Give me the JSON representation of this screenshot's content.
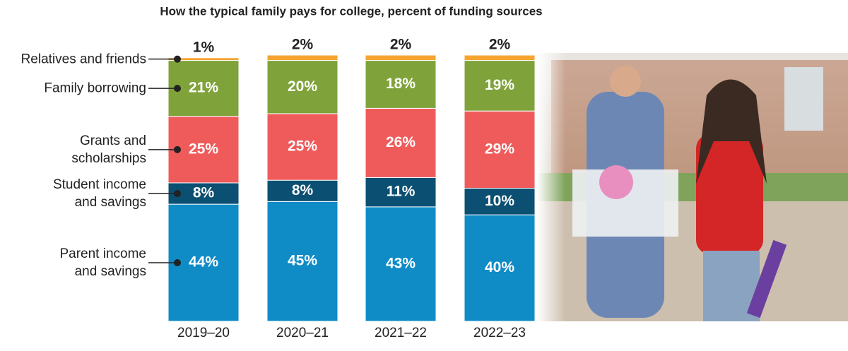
{
  "chart_data": {
    "type": "stacked-bar",
    "title": "How the typical family pays for college, percent of funding sources",
    "categories": [
      "2019–20",
      "2020–21",
      "2021–22",
      "2022–23"
    ],
    "ylim": [
      0,
      100
    ],
    "series": [
      {
        "name": "Parent income and savings",
        "color": "#0f8cc6",
        "values": [
          44,
          45,
          43,
          40
        ],
        "value_labels": [
          "44%",
          "45%",
          "43%",
          "40%"
        ]
      },
      {
        "name": "Student income and savings",
        "color": "#0b4f72",
        "values": [
          8,
          8,
          11,
          10
        ],
        "value_labels": [
          "8%",
          "8%",
          "11%",
          "10%"
        ]
      },
      {
        "name": "Grants and scholarships",
        "color": "#ef5b5b",
        "values": [
          25,
          25,
          26,
          29
        ],
        "value_labels": [
          "25%",
          "25%",
          "26%",
          "29%"
        ]
      },
      {
        "name": "Family borrowing",
        "color": "#7fa33a",
        "values": [
          21,
          20,
          18,
          19
        ],
        "value_labels": [
          "21%",
          "20%",
          "18%",
          "19%"
        ]
      },
      {
        "name": "Relatives and friends",
        "color": "#f5a431",
        "values": [
          1,
          2,
          2,
          2
        ],
        "value_labels": [
          "1%",
          "2%",
          "2%",
          "2%"
        ]
      }
    ]
  }
}
